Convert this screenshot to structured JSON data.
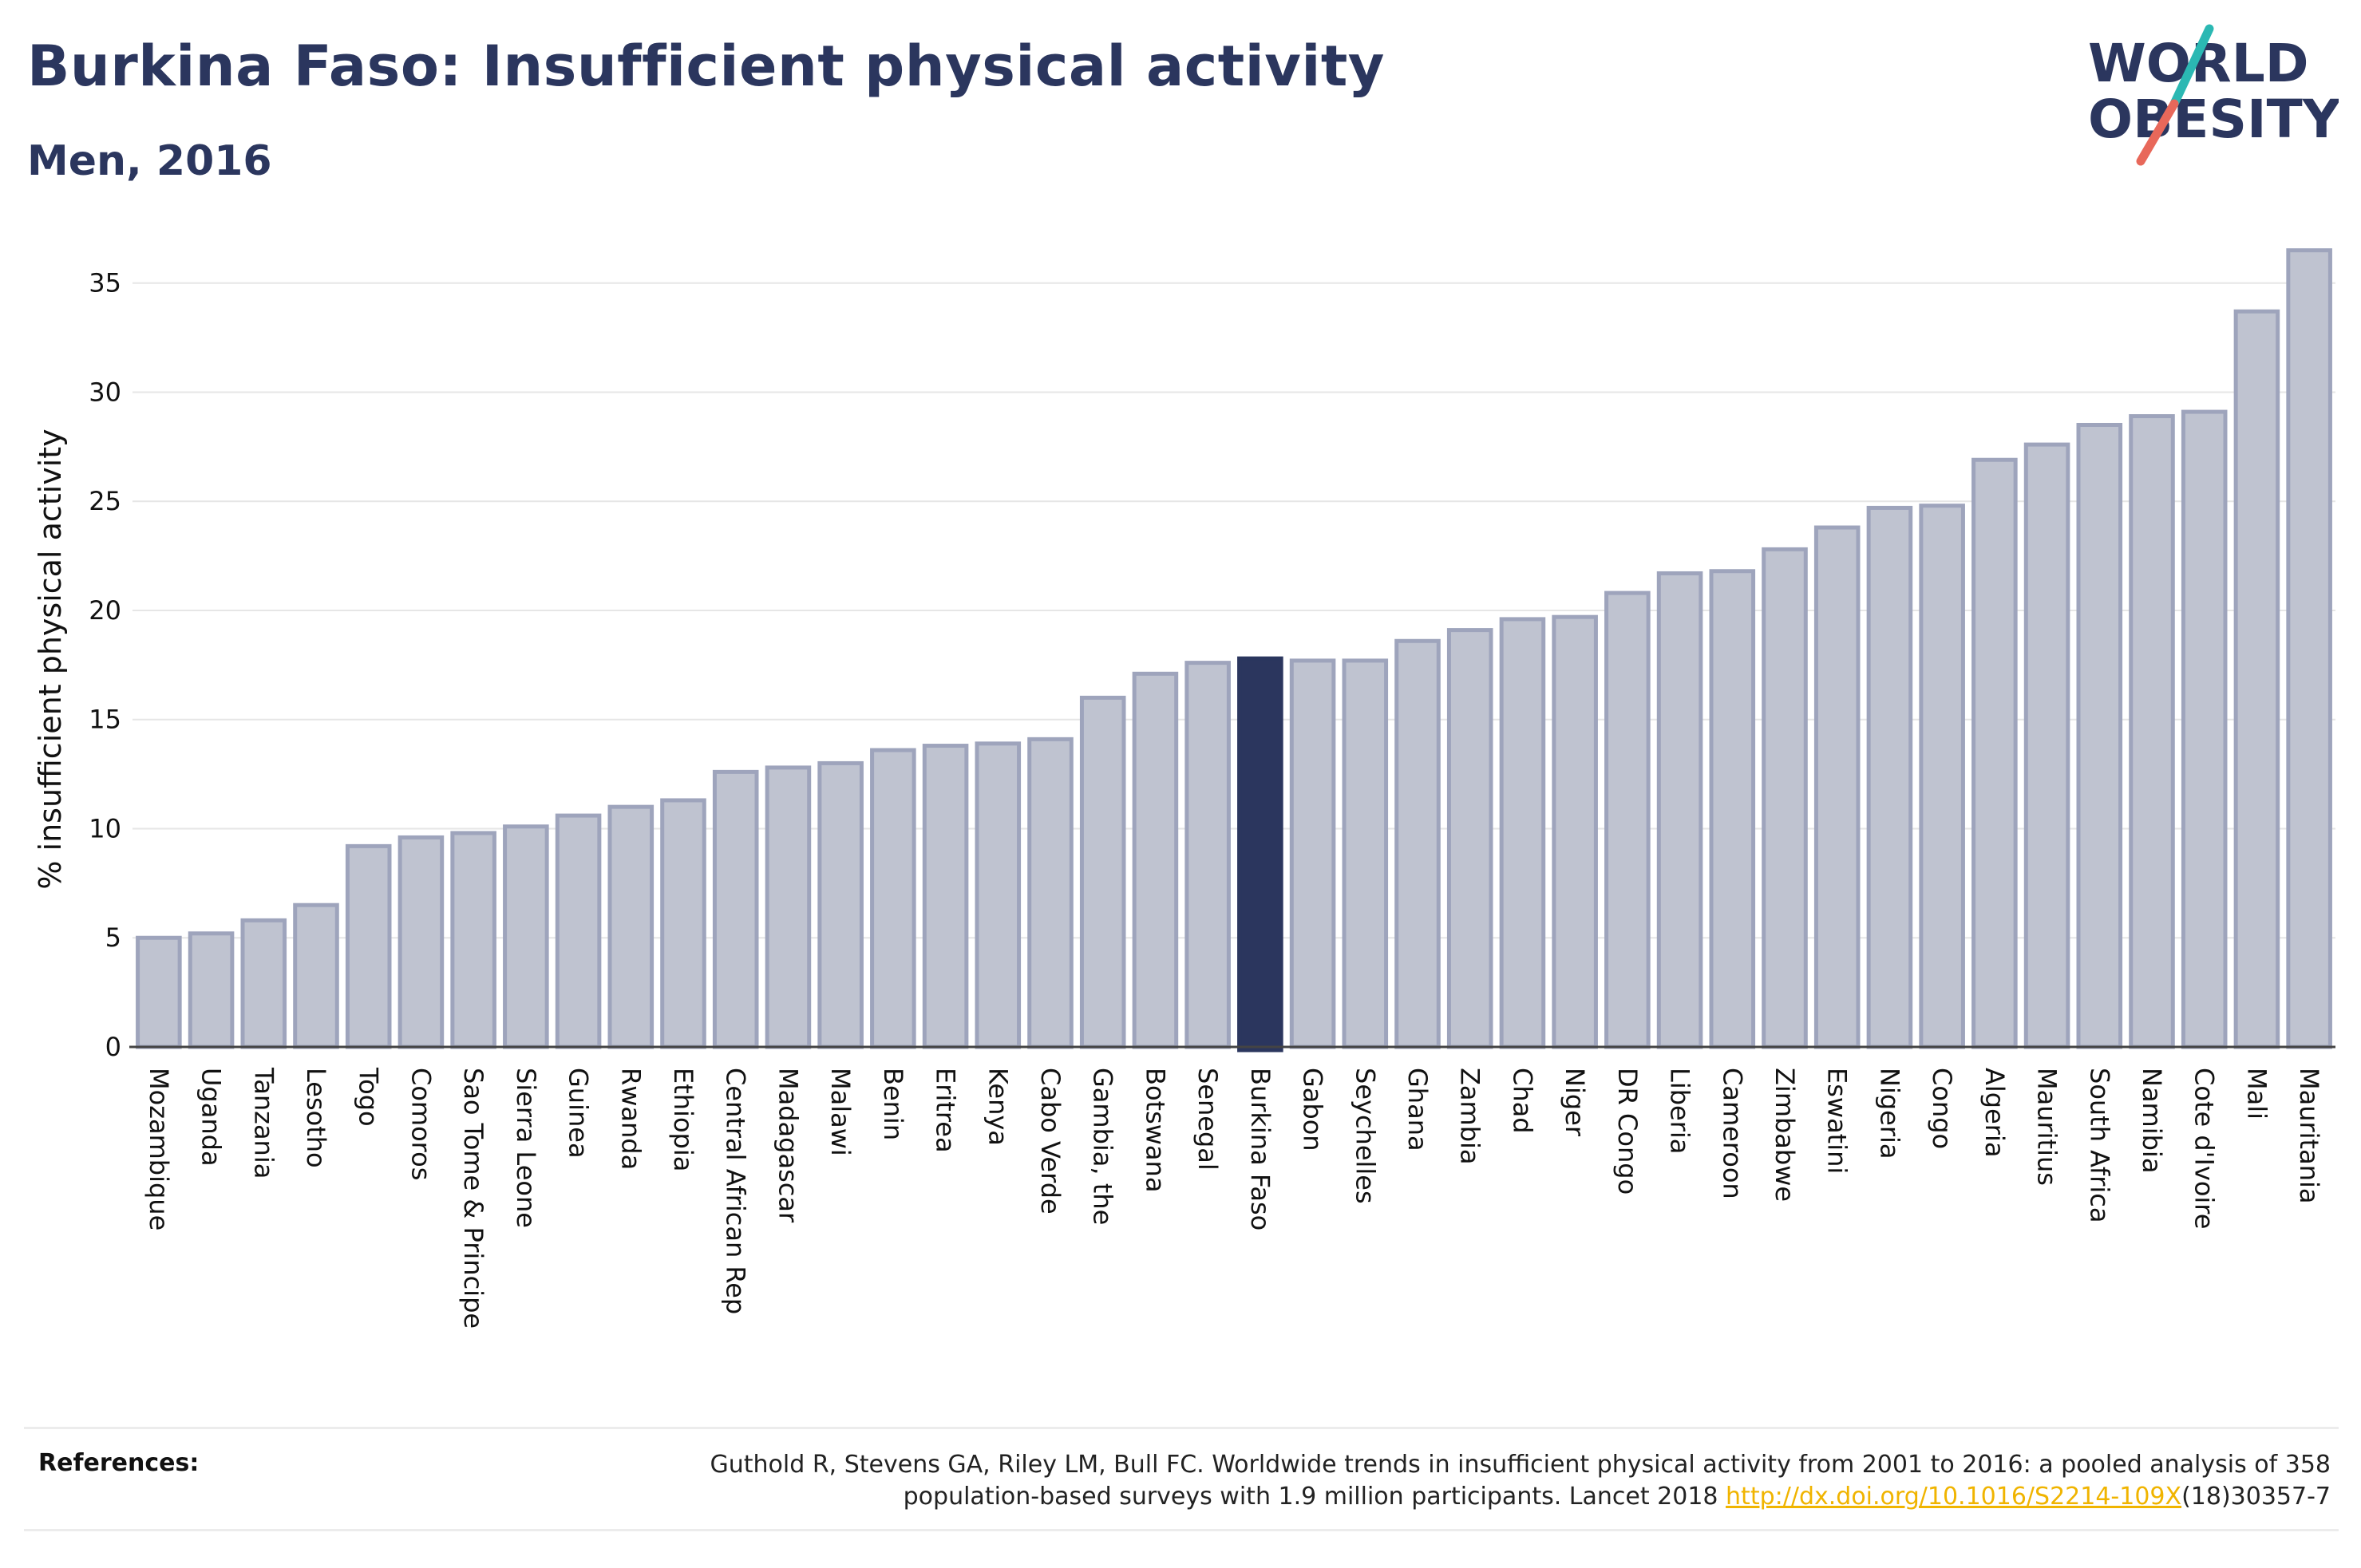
{
  "header": {
    "title": "Burkina Faso: Insufficient physical activity",
    "subtitle": "Men, 2016"
  },
  "logo": {
    "line1": "WORLD",
    "line2": "OBESITY",
    "colors": {
      "text": "#2b365e",
      "slash_teal": "#2bb8b3",
      "slash_coral": "#e8685a"
    }
  },
  "chart_data": {
    "type": "bar",
    "ylabel": "% insufficient physical activity",
    "ylim": [
      0,
      37
    ],
    "yticks": [
      0,
      5,
      10,
      15,
      20,
      25,
      30,
      35
    ],
    "grid": true,
    "highlight": "Burkina Faso",
    "colors": {
      "bar_fill": "#bfc3d0",
      "bar_stroke": "#9ea4bc",
      "highlight_fill": "#2b365e",
      "grid": "#e6e6e6",
      "axis": "#444444"
    },
    "categories": [
      "Mozambique",
      "Uganda",
      "Tanzania",
      "Lesotho",
      "Togo",
      "Comoros",
      "Sao Tome & Principe",
      "Sierra Leone",
      "Guinea",
      "Rwanda",
      "Ethiopia",
      "Central African Rep",
      "Madagascar",
      "Malawi",
      "Benin",
      "Eritrea",
      "Kenya",
      "Cabo Verde",
      "Gambia, the",
      "Botswana",
      "Senegal",
      "Burkina Faso",
      "Gabon",
      "Seychelles",
      "Ghana",
      "Zambia",
      "Chad",
      "Niger",
      "DR Congo",
      "Liberia",
      "Cameroon",
      "Zimbabwe",
      "Eswatini",
      "Nigeria",
      "Congo",
      "Algeria",
      "Mauritius",
      "South Africa",
      "Namibia",
      "Cote d'Ivoire",
      "Mali",
      "Mauritania"
    ],
    "values": [
      5.0,
      5.2,
      5.8,
      6.5,
      9.2,
      9.6,
      9.8,
      10.1,
      10.6,
      11.0,
      11.3,
      12.6,
      12.8,
      13.0,
      13.6,
      13.8,
      13.9,
      14.1,
      16.0,
      17.1,
      17.6,
      17.8,
      17.7,
      17.7,
      18.6,
      19.1,
      19.6,
      19.7,
      20.8,
      21.7,
      21.8,
      22.8,
      23.8,
      24.7,
      24.8,
      26.9,
      27.6,
      28.5,
      28.9,
      29.1,
      33.7,
      36.5
    ]
  },
  "references": {
    "label": "References:",
    "line1": "Guthold R, Stevens GA, Riley LM, Bull FC. Worldwide trends in insufficient physical activity from 2001 to 2016: a pooled analysis of 358",
    "line2_prefix": "population-based surveys with 1.9 million participants. Lancet 2018 ",
    "link_text": "http://dx.doi.org/10.1016/S2214-109X",
    "line2_suffix": "(18)30357-7"
  }
}
